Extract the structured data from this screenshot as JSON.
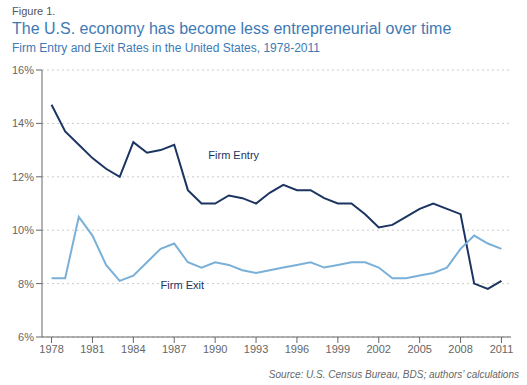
{
  "chart_data": {
    "type": "line",
    "figure_label": "Figure 1.",
    "title": "The U.S. economy has become less entrepreneurial over time",
    "subtitle": "Firm Entry and Exit Rates in the United States, 1978-2011",
    "source": "Source: U.S. Census Bureau, BDS; authors’ calculations",
    "x": [
      1978,
      1979,
      1980,
      1981,
      1982,
      1983,
      1984,
      1985,
      1986,
      1987,
      1988,
      1989,
      1990,
      1991,
      1992,
      1993,
      1994,
      1995,
      1996,
      1997,
      1998,
      1999,
      2000,
      2001,
      2002,
      2003,
      2004,
      2005,
      2006,
      2007,
      2008,
      2009,
      2010,
      2011
    ],
    "series": [
      {
        "name": "Firm Entry",
        "color": "#1b3461",
        "values": [
          14.7,
          13.7,
          13.2,
          12.7,
          12.3,
          12.0,
          13.3,
          12.9,
          13.0,
          13.2,
          11.5,
          11.0,
          11.0,
          11.3,
          11.2,
          11.0,
          11.4,
          11.7,
          11.5,
          11.5,
          11.2,
          11.0,
          11.0,
          10.6,
          10.1,
          10.2,
          10.5,
          10.8,
          11.0,
          10.8,
          10.6,
          8.0,
          7.8,
          8.1
        ]
      },
      {
        "name": "Firm Exit",
        "color": "#7ab0d8",
        "values": [
          8.2,
          8.2,
          10.5,
          9.8,
          8.7,
          8.1,
          8.3,
          8.8,
          9.3,
          9.5,
          8.8,
          8.6,
          8.8,
          8.7,
          8.5,
          8.4,
          8.5,
          8.6,
          8.7,
          8.8,
          8.6,
          8.7,
          8.8,
          8.8,
          8.6,
          8.2,
          8.2,
          8.3,
          8.4,
          8.6,
          9.3,
          9.8,
          9.5,
          9.3
        ]
      }
    ],
    "annotations": [
      {
        "text": "Firm Entry",
        "x": 1989.5,
        "y": 13.05
      },
      {
        "text": "Firm Exit",
        "x": 1986.0,
        "y": 8.15
      }
    ],
    "xlim": [
      1977.3,
      2011.7
    ],
    "xticks": [
      1978,
      1981,
      1984,
      1987,
      1990,
      1993,
      1996,
      1999,
      2002,
      2005,
      2008,
      2011
    ],
    "ylim": [
      6.0,
      16.0
    ],
    "yticks": [
      {
        "value": 6,
        "label": "6%"
      },
      {
        "value": 8,
        "label": "8%"
      },
      {
        "value": 10,
        "label": "10%"
      },
      {
        "value": 12,
        "label": "12%"
      },
      {
        "value": 14,
        "label": "14%"
      },
      {
        "value": 16,
        "label": "16%"
      }
    ],
    "grid": "y"
  }
}
